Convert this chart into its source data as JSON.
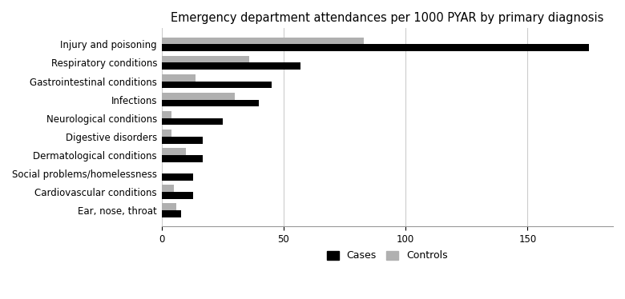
{
  "title": "Emergency department attendances per 1000 PYAR by primary diagnosis",
  "categories": [
    "Injury and poisoning",
    "Respiratory conditions",
    "Gastrointestinal conditions",
    "Infections",
    "Neurological conditions",
    "Digestive disorders",
    "Dermatological conditions",
    "Social problems/homelessness",
    "Cardiovascular conditions",
    "Ear, nose, throat"
  ],
  "cases": [
    175,
    57,
    45,
    40,
    25,
    17,
    17,
    13,
    13,
    8
  ],
  "controls": [
    83,
    36,
    14,
    30,
    4,
    4,
    10,
    0,
    5,
    6
  ],
  "cases_color": "#000000",
  "controls_color": "#b0b0b0",
  "xlim": [
    0,
    185
  ],
  "xticks": [
    0,
    50,
    100,
    150
  ],
  "bar_height": 0.38,
  "background_color": "#ffffff",
  "grid_color": "#cccccc",
  "title_fontsize": 10.5,
  "label_fontsize": 8.5,
  "tick_fontsize": 8.5,
  "legend_fontsize": 9
}
